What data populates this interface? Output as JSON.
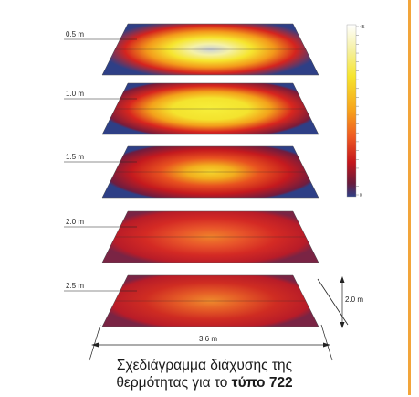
{
  "levels": [
    {
      "label": "0.5 m",
      "intensity": 0.95
    },
    {
      "label": "1.0 m",
      "intensity": 0.85
    },
    {
      "label": "1.5 m",
      "intensity": 0.7
    },
    {
      "label": "2.0 m",
      "intensity": 0.5
    },
    {
      "label": "2.5 m",
      "intensity": 0.38
    }
  ],
  "dimensions": {
    "depth": "2.0 m",
    "width": "3.6 m"
  },
  "scale": {
    "ticks": [
      "45",
      "",
      "",
      "",
      "",
      "",
      "",
      "",
      "",
      "",
      "",
      "",
      "",
      "",
      "",
      "",
      "",
      "",
      "",
      "0"
    ]
  },
  "caption": {
    "line1": "Σχεδιάγραμμα διάχυσης της",
    "line2_prefix": "θερμότητας για το ",
    "line2_bold": "τύπο 722"
  },
  "colors": {
    "frame": "#f2a53a",
    "plate_edge": "#2e3f86"
  }
}
